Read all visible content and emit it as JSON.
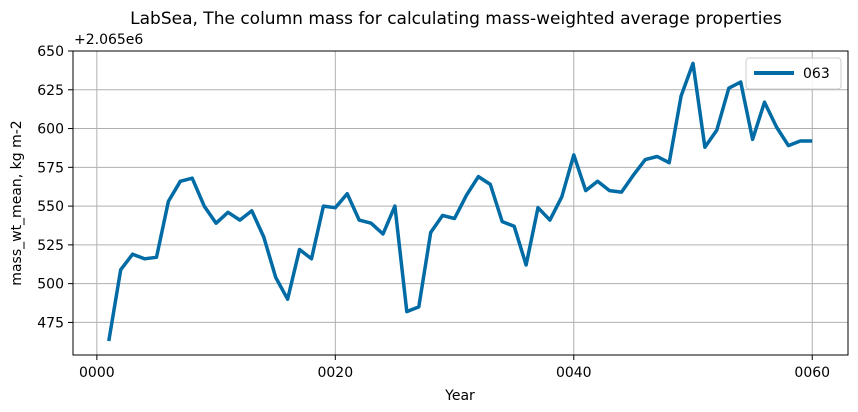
{
  "chart_data": {
    "type": "line",
    "title": "LabSea, The column mass for calculating mass-weighted average properties",
    "xlabel": "Year",
    "ylabel": "mass_wt_mean, kg m-2",
    "offset_label": "+2.065e6",
    "y_offset": 2065000,
    "xlim": [
      -2,
      63
    ],
    "ylim": [
      454,
      650
    ],
    "x_ticks": [
      0,
      20,
      40,
      60
    ],
    "x_tick_labels": [
      "0000",
      "0020",
      "0040",
      "0060"
    ],
    "y_ticks": [
      475,
      500,
      525,
      550,
      575,
      600,
      625,
      650
    ],
    "y_tick_labels": [
      "475",
      "500",
      "525",
      "550",
      "575",
      "600",
      "625",
      "650"
    ],
    "grid": true,
    "legend_position": "top-right",
    "series": [
      {
        "name": "063",
        "color": "#006ba4",
        "x": [
          1,
          2,
          3,
          4,
          5,
          6,
          7,
          8,
          9,
          10,
          11,
          12,
          13,
          14,
          15,
          16,
          17,
          18,
          19,
          20,
          21,
          22,
          23,
          24,
          25,
          26,
          27,
          28,
          29,
          30,
          31,
          32,
          33,
          34,
          35,
          36,
          37,
          38,
          39,
          40,
          41,
          42,
          43,
          44,
          45,
          46,
          47,
          48,
          49,
          50,
          51,
          52,
          53,
          54,
          55,
          56,
          57,
          58,
          59,
          60
        ],
        "values": [
          463,
          509,
          519,
          516,
          517,
          553,
          566,
          568,
          550,
          539,
          546,
          541,
          547,
          530,
          504,
          490,
          522,
          516,
          550,
          549,
          558,
          541,
          539,
          532,
          550,
          482,
          485,
          533,
          544,
          542,
          557,
          569,
          564,
          540,
          537,
          512,
          549,
          541,
          556,
          583,
          560,
          566,
          560,
          559,
          570,
          580,
          582,
          578,
          621,
          642,
          588,
          599,
          626,
          630,
          593,
          617,
          601,
          589,
          592,
          592
        ]
      }
    ]
  }
}
